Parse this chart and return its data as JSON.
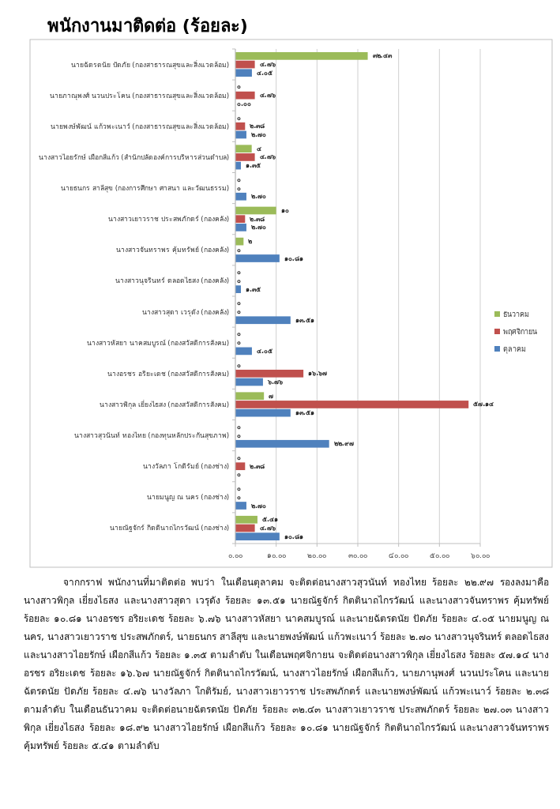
{
  "chart_data": {
    "type": "bar",
    "orientation": "horizontal",
    "title": "พนักงานมาติดต่อ (ร้อยละ)",
    "categories": [
      "นายฉัตรดนัย  ปัดภัย  (กองสาธารณสุขและสิ่งแวดล้อม)",
      "นายภาณุพงศ์  นวนประโคน  (กองสาธารณสุขและสิ่งแวดล้อม)",
      "นายพงษ์พัฒน์  แก้วพะเนาว์  (กองสาธารณสุขและสิ่งแวดล้อม)",
      "นางสาวไอยรักษ์  เผือกสีแก้ว  (สำนักปลัดองค์การบริหารส่วนตำบล)",
      "นายธนกร  สาลีสุข  (กองการศึกษา ศาสนา และวัฒนธรรม)",
      "นางสาวเยาวราช  ประสพภักตร์  (กองคลัง)",
      "นางสาวจันทราพร  คุ้มทรัพย์  (กองคลัง)",
      "นางสาวนุจรินทร์  ตลอดไธสง  (กองคลัง)",
      "นางสาวสุดา  เวรุดัง  (กองคลัง)",
      "นางสาวหัสยา  นาคสมบูรณ์  (กองสวัสดิการสังคม)",
      "นางอรชร  อริยะเดช  (กองสวัสดิการสังคม)",
      "นางสาวพิกุล  เยี่ยงไธสง  (กองสวัสดิการสังคม)",
      "นางสาวสุวนันท์  ทองไทย  (กองทุนหลักประกันสุขภาพ)",
      "นางวัลภา  โกติรัมย์  (กองช่าง)",
      "นายมนูญ  ณ  นคร  (กองช่าง)",
      "นายณัฐจักร์  กิตตินาถไกรวัฒน์  (กองช่าง)"
    ],
    "series": [
      {
        "name": "ตุลาคม",
        "color": "#4f81bd",
        "values": [
          4.05,
          0,
          2.7,
          1.35,
          2.7,
          2.7,
          10.81,
          1.35,
          13.51,
          4.05,
          6.76,
          13.51,
          22.97,
          0,
          2.7,
          10.81
        ],
        "value_labels": [
          "๔.๐๕",
          "๐.๐๐",
          "๒.๗๐",
          "๑.๓๕",
          "๒.๗๐",
          "๒.๗๐",
          "๑๐.๘๑",
          "๑.๓๕",
          "๑๓.๕๑",
          "๔.๐๕",
          "๖.๗๖",
          "๑๓.๕๑",
          "๒๒.๙๗",
          "๐",
          "๒.๗๐",
          "๑๐.๘๑"
        ]
      },
      {
        "name": "พฤศจิกายน",
        "color": "#c0504d",
        "values": [
          4.76,
          4.76,
          2.38,
          4.76,
          0,
          2.38,
          0,
          0,
          0,
          0,
          16.67,
          57.14,
          0,
          2.38,
          0,
          4.76
        ],
        "value_labels": [
          "๔.๗๖",
          "๔.๗๖",
          "๒.๓๘",
          "๔.๗๖",
          "๐",
          "๒.๓๘",
          "๐",
          "๐",
          "๐",
          "๐",
          "๑๖.๖๗",
          "๕๗.๑๔",
          "๐",
          "๒.๓๘",
          "๐",
          "๔.๗๖"
        ]
      },
      {
        "name": "ธันวาคม",
        "color": "#9bbb59",
        "values": [
          32.43,
          0,
          0,
          4,
          0,
          10,
          2,
          0,
          0,
          0,
          0,
          7,
          0,
          0,
          0,
          5.41
        ],
        "value_labels": [
          "๓๒.๔๓",
          "๐",
          "๐",
          "๔",
          "๐",
          "๑๐",
          "๒",
          "๐",
          "๐",
          "๐",
          "๐",
          "๗",
          "๐",
          "๐",
          "๐",
          "๕.๔๑"
        ]
      }
    ],
    "xlim": [
      0,
      60
    ],
    "xticks": [
      {
        "value": 0,
        "label": "๐.๐๐"
      },
      {
        "value": 10,
        "label": "๑๐.๐๐"
      },
      {
        "value": 20,
        "label": "๒๐.๐๐"
      },
      {
        "value": 30,
        "label": "๓๐.๐๐"
      },
      {
        "value": 40,
        "label": "๔๐.๐๐"
      },
      {
        "value": 50,
        "label": "๕๐.๐๐"
      },
      {
        "value": 60,
        "label": "๖๐.๐๐"
      }
    ],
    "grid": "x",
    "legend": "right",
    "annotations": [
      "จากกราฟ พนักงานที่มาติดต่อ พบว่า ในเดือนตุลาคม จะติดต่อนางสาวสุวนันท์  ทองไทย ร้อยละ ๒๒.๙๗ รองลงมาคือ นางสาวพิกุล  เยี่ยงไธสง และนางสาวสุดา  เวรุดัง ร้อยละ ๑๓.๕๑  นายณัฐจักร์  กิตตินาถไกรวัฒน์ และนางสาวจันทราพร  คุ้มทรัพย์ ร้อยละ ๑๐.๘๑  นางอรชร  อริยะเดช ร้อยละ ๖.๗๖  นางสาวหัสยา  นาคสมบูรณ์ และนายฉัตรดนัย  ปัดภัย ร้อยละ ๔.๐๕  นายมนูญ ณ นคร, นางสาวเยาวราช  ประสพภักตร์, นายธนกร  สาลีสุข และนายพงษ์พัฒน์  แก้วพะเนาว์ ร้อยละ ๒.๗๐  นางสาวนุจรินทร์  ตลอดไธสง และนางสาวไอยรักษ์  เผือกสีแก้ว ร้อยละ ๑.๓๕ ตามลำดับ  ในเดือนพฤศจิกายน จะติดต่อนางสาวพิกุล  เยี่ยงไธสง ร้อยละ ๕๗.๑๔ นางอรชร  อริยะเดช ร้อยละ ๑๖.๖๗  นายณัฐจักร์  กิตตินาถไกรวัฒน์, นางสาวไอยรักษ์  เผือกสีแก้ว, นายภานุพงศ์  นวนประโคน และนายฉัตรดนัย  ปัดภัย  ร้อยละ ๔.๗๖  นางวัลภา  โกติรัมย์, นางสาวเยาวราช  ประสพภักตร์ และนายพงษ์พัฒน์  แก้วพะเนาว์ ร้อยละ ๒.๓๘ ตามลำดับ  ในเดือนธันวาคม จะติดต่อนายฉัตรดนัย  ปัดภัย ร้อยละ ๓๒.๔๓  นางสาวเยาวราช  ประสพภักตร์ ร้อยละ ๒๗.๐๓ นางสาวพิกุล  เยี่ยงไธสง ร้อยละ ๑๘.๙๒  นางสาวไอยรักษ์  เผือกสีแก้ว ร้อยละ ๑๐.๘๑ นายณัฐจักร์  กิตตินาถไกรวัฒน์ และนางสาวจันทราพร  คุ้มทรัพย์ ร้อยละ ๕.๔๑ ตามลำดับ"
    ]
  }
}
